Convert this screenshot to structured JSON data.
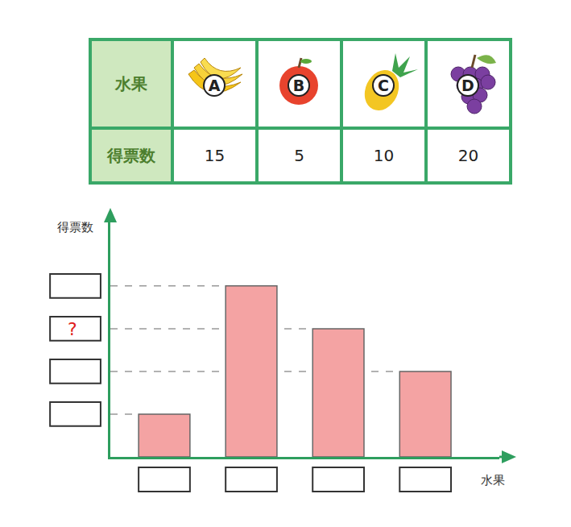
{
  "table": {
    "header": {
      "label": "水果",
      "items": [
        "A",
        "B",
        "C",
        "D"
      ]
    },
    "row": {
      "label": "得票数",
      "values": [
        15,
        5,
        10,
        20
      ]
    }
  },
  "chart_data": {
    "type": "bar",
    "x_label": "水果",
    "y_label": "得票数",
    "categories": [
      null,
      null,
      null,
      null
    ],
    "values": [
      5,
      20,
      15,
      10
    ],
    "color": "#f4a3a3",
    "ylim": [
      0,
      28
    ],
    "yticks": [
      {
        "value": 15,
        "label": "?"
      }
    ],
    "grid": false
  }
}
